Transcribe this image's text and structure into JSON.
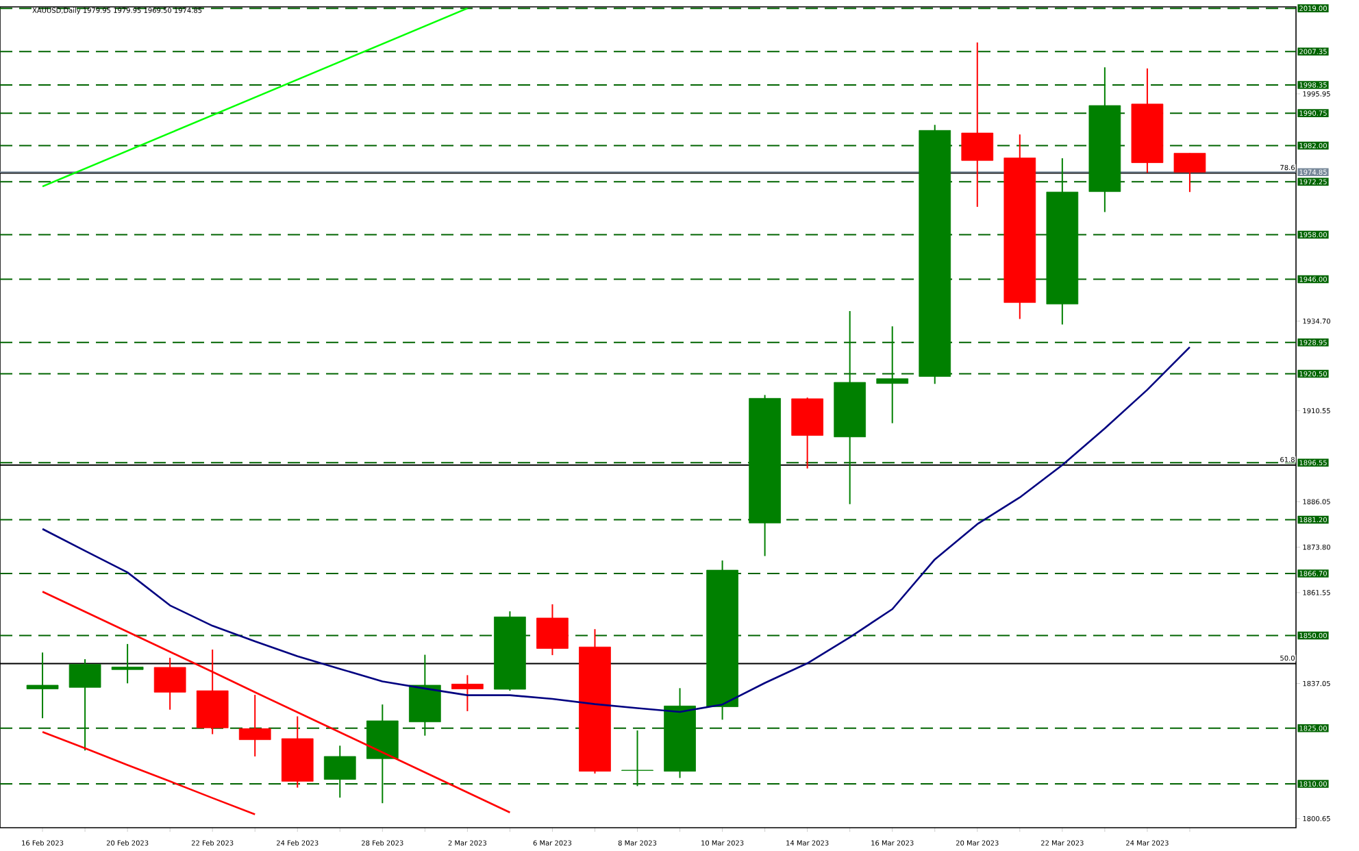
{
  "chart_data": {
    "type": "candlestick",
    "title": "XAUUSD,Daily  1979.95 1979.95 1969.50 1974.85",
    "categories": [
      "16 Feb 2023",
      null,
      "20 Feb 2023",
      null,
      "22 Feb 2023",
      null,
      "24 Feb 2023",
      null,
      "28 Feb 2023",
      null,
      "2 Mar 2023",
      null,
      "6 Mar 2023",
      null,
      "8 Mar 2023",
      null,
      "10 Mar 2023",
      null,
      "14 Mar 2023",
      null,
      "16 Mar 2023",
      null,
      "20 Mar 2023",
      null,
      "22 Mar 2023",
      null,
      "24 Mar 2023",
      null
    ],
    "ohlc": [
      [
        1835.6,
        1845.4,
        1827.7,
        1836.6
      ],
      [
        1836.0,
        1843.6,
        1819.0,
        1842.2
      ],
      [
        1840.8,
        1847.7,
        1837.1,
        1841.5
      ],
      [
        1841.4,
        1844.0,
        1830.0,
        1834.7
      ],
      [
        1835.1,
        1846.2,
        1823.4,
        1825.1
      ],
      [
        1824.9,
        1834.0,
        1817.4,
        1821.9
      ],
      [
        1822.2,
        1828.2,
        1809.0,
        1810.7
      ],
      [
        1811.2,
        1820.3,
        1806.3,
        1817.4
      ],
      [
        1816.8,
        1831.4,
        1804.8,
        1827.0
      ],
      [
        1826.7,
        1844.8,
        1823.0,
        1836.6
      ],
      [
        1836.9,
        1839.3,
        1829.6,
        1835.6
      ],
      [
        1835.5,
        1856.5,
        1835.1,
        1855.0
      ],
      [
        1854.7,
        1858.4,
        1844.7,
        1846.5
      ],
      [
        1846.9,
        1851.7,
        1812.8,
        1813.4
      ],
      [
        1813.6,
        1824.4,
        1809.4,
        1813.7
      ],
      [
        1813.4,
        1835.8,
        1811.6,
        1831.0
      ],
      [
        1830.8,
        1870.2,
        1827.3,
        1867.6
      ],
      [
        1880.3,
        1914.8,
        1871.4,
        1913.9
      ],
      [
        1913.8,
        1914.1,
        1895.0,
        1903.9
      ],
      [
        1903.5,
        1937.4,
        1885.4,
        1918.2
      ],
      [
        1917.9,
        1933.3,
        1907.2,
        1919.2
      ],
      [
        1919.8,
        1987.6,
        1917.8,
        1986.1
      ],
      [
        1985.4,
        2009.8,
        1965.5,
        1978.0
      ],
      [
        1978.7,
        1985.0,
        1935.3,
        1939.7
      ],
      [
        1939.3,
        1978.6,
        1933.8,
        1969.5
      ],
      [
        1969.6,
        2003.1,
        1964.1,
        1992.8
      ],
      [
        1993.2,
        2002.8,
        1974.7,
        1977.4
      ],
      [
        1979.95,
        1979.95,
        1969.5,
        1974.85
      ]
    ],
    "colors": [
      "#008000",
      "#008000",
      "#008000",
      "#ff0000",
      "#ff0000",
      "#ff0000",
      "#ff0000",
      "#008000",
      "#008000",
      "#008000",
      "#ff0000",
      "#008000",
      "#ff0000",
      "#ff0000",
      "#008000",
      "#008000",
      "#008000",
      "#008000",
      "#ff0000",
      "#008000",
      "#008000",
      "#008000",
      "#ff0000",
      "#ff0000",
      "#008000",
      "#008000",
      "#ff0000",
      "#ff0000"
    ],
    "series": [
      {
        "type": "line",
        "color": "#000080",
        "values": [
          1878.7,
          1872.8,
          1867.0,
          1858.1,
          1852.6,
          1848.4,
          1844.4,
          1841.0,
          1837.6,
          1835.7,
          1833.9,
          1833.9,
          1832.9,
          1831.5,
          1830.4,
          1829.4,
          1831.4,
          1837.2,
          1842.5,
          1849.5,
          1857.1,
          1870.5,
          1880.0,
          1887.2,
          1895.9,
          1905.8,
          1916.2,
          1927.7
        ]
      },
      {
        "type": "line",
        "color": "#00ff00",
        "values": [
          1971.0,
          1975.8,
          1980.6,
          1985.4,
          1990.2,
          1995.0,
          1999.8,
          2004.6,
          2009.4,
          2014.2,
          2019.0,
          null,
          null,
          null,
          null,
          null,
          null,
          null,
          null,
          null,
          null,
          null,
          null,
          null,
          null,
          null,
          null,
          null
        ]
      },
      {
        "type": "line",
        "color": "#ff0000",
        "values": [
          1861.8,
          1856.4,
          1851.0,
          1845.6,
          1840.2,
          1834.7,
          1829.3,
          1823.9,
          1818.5,
          1813.1,
          1807.7,
          1802.3,
          null,
          null,
          null,
          null,
          null,
          null,
          null,
          null,
          null,
          null,
          null,
          null,
          null,
          null,
          null,
          null
        ]
      },
      {
        "type": "line",
        "color": "#ff0000",
        "values": [
          1824.0,
          1819.6,
          1815.1,
          1810.7,
          1806.2,
          1801.8,
          null,
          null,
          null,
          null,
          null,
          null,
          null,
          null,
          null,
          null,
          null,
          null,
          null,
          null,
          null,
          null,
          null,
          null,
          null,
          null,
          null,
          null
        ]
      }
    ],
    "annotations": [
      {
        "text": "78.6",
        "y": 1974.6
      },
      {
        "text": "61.8",
        "y": 1895.9
      },
      {
        "text": "50.0",
        "y": 1842.4
      }
    ],
    "ylim": [
      1798.2,
      2019.4
    ],
    "yticks": [
      1800.65,
      1837.05,
      1861.55,
      {
        "value": 1873.8,
        "label": "1873.80"
      },
      1886.05,
      1910.55,
      {
        "value": 1934.7,
        "label": "1934.70"
      },
      1995.95
    ],
    "ref_lines": [
      {
        "axis": "y",
        "value": 2019.0,
        "label": "2019.00",
        "color": "#006400",
        "line_style": "dashed"
      },
      {
        "axis": "y",
        "value": 2007.35,
        "label": "2007.35",
        "color": "#006400",
        "line_style": "dashed"
      },
      {
        "axis": "y",
        "value": 1998.35,
        "label": "1998.35",
        "color": "#006400",
        "line_style": "dashed"
      },
      {
        "axis": "y",
        "value": 1990.75,
        "label": "1990.75",
        "color": "#006400",
        "line_style": "dashed"
      },
      {
        "axis": "y",
        "value": 1982.0,
        "label": "1982.00",
        "color": "#006400",
        "line_style": "dashed"
      },
      {
        "axis": "y",
        "value": 1972.25,
        "label": "1972.25",
        "color": "#006400",
        "line_style": "dashed"
      },
      {
        "axis": "y",
        "value": 1958.0,
        "label": "1958.00",
        "color": "#006400",
        "line_style": "dashed"
      },
      {
        "axis": "y",
        "value": 1946.0,
        "label": "1946.00",
        "color": "#006400",
        "line_style": "dashed"
      },
      {
        "axis": "y",
        "value": 1928.95,
        "label": "1928.95",
        "color": "#006400",
        "line_style": "dashed"
      },
      {
        "axis": "y",
        "value": 1920.5,
        "label": "1920.50",
        "color": "#006400",
        "line_style": "dashed"
      },
      {
        "axis": "y",
        "value": 1896.55,
        "label": "1896.55",
        "color": "#006400",
        "line_style": "dashed"
      },
      {
        "axis": "y",
        "value": 1881.2,
        "label": "1881.20",
        "color": "#006400",
        "line_style": "dashed"
      },
      {
        "axis": "y",
        "value": 1866.7,
        "label": "1866.70",
        "color": "#006400",
        "line_style": "dashed"
      },
      {
        "axis": "y",
        "value": 1850.0,
        "label": "1850.00",
        "color": "#006400",
        "line_style": "dashed"
      },
      {
        "axis": "y",
        "value": 1825.0,
        "label": "1825.00",
        "color": "#006400",
        "line_style": "dashed"
      },
      {
        "axis": "y",
        "value": 1810.0,
        "label": "1810.00",
        "color": "#006400",
        "line_style": "dashed"
      },
      {
        "axis": "y",
        "value": 1974.6,
        "color": "#000000",
        "line_style": "solid"
      },
      {
        "axis": "y",
        "value": 1895.9,
        "color": "#000000",
        "line_style": "solid"
      },
      {
        "axis": "y",
        "value": 1842.4,
        "color": "#000000",
        "line_style": "solid"
      },
      {
        "axis": "y",
        "value": 1974.85,
        "label": "1974.85",
        "color": "#778899",
        "line_style": "solid"
      }
    ]
  }
}
